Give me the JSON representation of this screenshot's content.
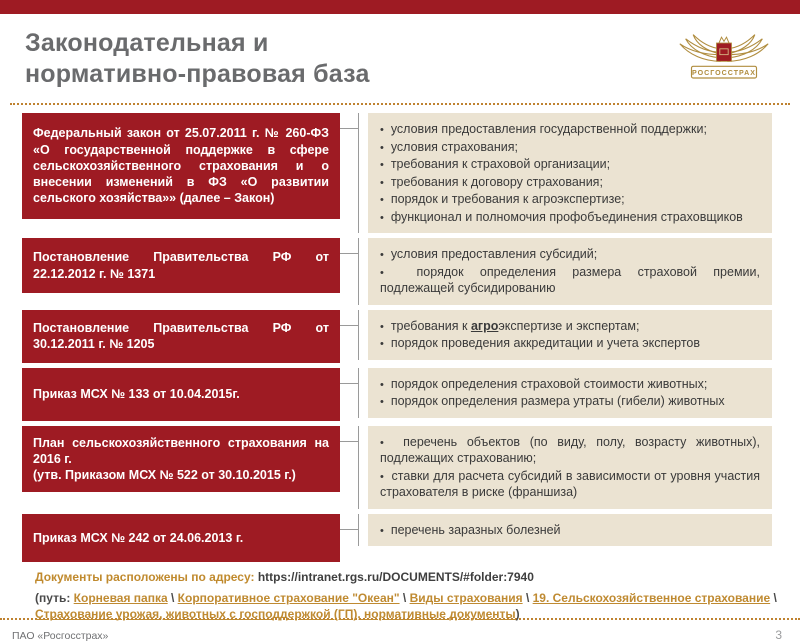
{
  "colors": {
    "brand_red": "#9e1b23",
    "panel_beige": "#ebe3d2",
    "accent_gold": "#bf8a31",
    "title_gray": "#6a6b6d"
  },
  "slide": {
    "title": "Законодательная и\nнормативно-правовая база",
    "page_number": "3",
    "footer_org": "ПАО «Росгосстрах»"
  },
  "logo": {
    "text": "РОСГОССТРАХ"
  },
  "rows": [
    {
      "law": "Федеральный закон от 25.07.2011 г. № 260-ФЗ «О государственной поддержке в сфере сельскохозяйственного страхования и о внесении изменений в ФЗ «О развитии сельского хозяйства»» (далее – Закон)",
      "bullets": [
        "условия предоставления государственной поддержки;",
        "условия страхования;",
        "требования к страховой организации;",
        "требования к договору страхования;",
        "порядок и требования к агроэкспертизе;",
        "функционал и полномочия профобъединения страховщиков"
      ]
    },
    {
      "law": "Постановление Правительства РФ от 22.12.2012 г. № 1371",
      "bullets": [
        "условия предоставления субсидий;",
        "порядок определения размера страховой премии, подлежащей субсидированию"
      ]
    },
    {
      "law": "Постановление Правительства РФ от 30.12.2011 г. № 1205",
      "bullets": [
        "требования к **агро**экспертизе и экспертам;",
        "порядок проведения аккредитации и учета экспертов"
      ]
    },
    {
      "law": "Приказ МСХ № 133 от 10.04.2015г.",
      "bullets": [
        "порядок определения страховой стоимости животных;",
        "порядок определения размера утраты (гибели) животных"
      ]
    },
    {
      "law": "План сельскохозяйственного страхования на 2016 г.\n(утв. Приказом МСХ № 522 от 30.10.2015 г.)",
      "bullets": [
        "перечень объектов (по виду, полу, возрасту животных), подлежащих страхованию;",
        "ставки для расчета субсидий в зависимости от уровня участия страхователя в риске (франшиза)"
      ]
    },
    {
      "law": "Приказ МСХ № 242 от 24.06.2013 г.",
      "bullets": [
        "перечень заразных болезней"
      ]
    }
  ],
  "docs_line": {
    "label": "Документы расположены по адресу:",
    "url": "https://intranet.rgs.ru/DOCUMENTS/#folder:7940"
  },
  "path_line": {
    "prefix": "(путь:",
    "links": [
      "Корневая папка",
      "Корпоративное страхование \"Океан\"",
      "Виды страхования",
      "19. Сельскохозяйственное страхование",
      "Страхование урожая, животных с господдержкой (ГП), нормативные документы"
    ],
    "suffix": ")"
  }
}
